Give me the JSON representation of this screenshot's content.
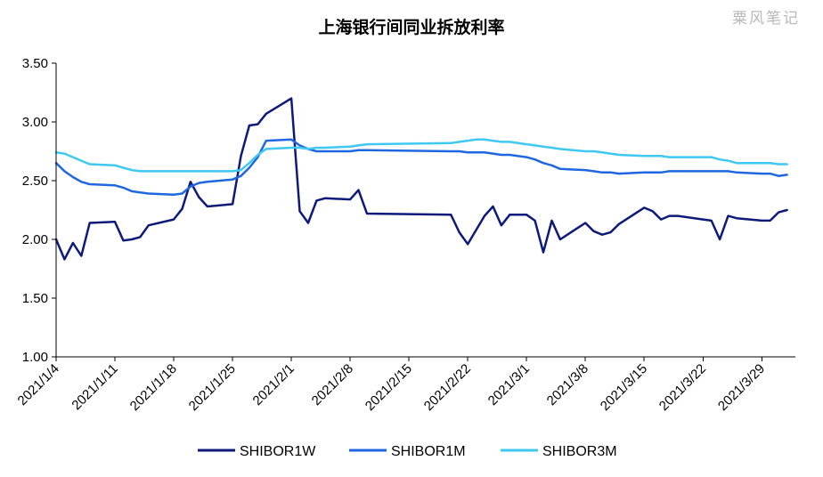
{
  "watermark": "粟风笔记",
  "chart_data": {
    "type": "line",
    "title": "上海银行间同业拆放利率",
    "xlabel": "",
    "ylabel": "",
    "ylim": [
      1.0,
      3.5
    ],
    "yticks": [
      "1.00",
      "1.50",
      "2.00",
      "2.50",
      "3.00",
      "3.50"
    ],
    "xlim": [
      "2021-01-04",
      "2021-04-02"
    ],
    "xtick_dates": [
      "2021-01-04",
      "2021-01-11",
      "2021-01-18",
      "2021-01-25",
      "2021-02-01",
      "2021-02-08",
      "2021-02-15",
      "2021-02-22",
      "2021-03-01",
      "2021-03-08",
      "2021-03-15",
      "2021-03-22",
      "2021-03-29"
    ],
    "xtick_labels": [
      "2021/1/4",
      "2021/1/11",
      "2021/1/18",
      "2021/1/25",
      "2021/2/1",
      "2021/2/8",
      "2021/2/15",
      "2021/2/22",
      "2021/3/1",
      "2021/3/8",
      "2021/3/15",
      "2021/3/22",
      "2021/3/29"
    ],
    "grid": false,
    "legend_position": "bottom",
    "series": [
      {
        "name": "SHIBOR1W",
        "color": "#0d1a7a",
        "points": [
          [
            "2021-01-04",
            2.0
          ],
          [
            "2021-01-05",
            1.83
          ],
          [
            "2021-01-06",
            1.97
          ],
          [
            "2021-01-07",
            1.86
          ],
          [
            "2021-01-08",
            2.14
          ],
          [
            "2021-01-11",
            2.15
          ],
          [
            "2021-01-12",
            1.99
          ],
          [
            "2021-01-13",
            2.0
          ],
          [
            "2021-01-14",
            2.02
          ],
          [
            "2021-01-15",
            2.12
          ],
          [
            "2021-01-18",
            2.17
          ],
          [
            "2021-01-19",
            2.26
          ],
          [
            "2021-01-20",
            2.49
          ],
          [
            "2021-01-21",
            2.36
          ],
          [
            "2021-01-22",
            2.28
          ],
          [
            "2021-01-25",
            2.3
          ],
          [
            "2021-01-26",
            2.71
          ],
          [
            "2021-01-27",
            2.97
          ],
          [
            "2021-01-28",
            2.98
          ],
          [
            "2021-01-29",
            3.07
          ],
          [
            "2021-02-01",
            3.2
          ],
          [
            "2021-02-02",
            2.24
          ],
          [
            "2021-02-03",
            2.14
          ],
          [
            "2021-02-04",
            2.33
          ],
          [
            "2021-02-05",
            2.35
          ],
          [
            "2021-02-08",
            2.34
          ],
          [
            "2021-02-09",
            2.42
          ],
          [
            "2021-02-10",
            2.22
          ],
          [
            "2021-02-20",
            2.21
          ],
          [
            "2021-02-21",
            2.06
          ],
          [
            "2021-02-22",
            1.96
          ],
          [
            "2021-02-23",
            2.08
          ],
          [
            "2021-02-24",
            2.2
          ],
          [
            "2021-02-25",
            2.28
          ],
          [
            "2021-02-26",
            2.12
          ],
          [
            "2021-02-27",
            2.21
          ],
          [
            "2021-03-01",
            2.21
          ],
          [
            "2021-03-02",
            2.16
          ],
          [
            "2021-03-03",
            1.89
          ],
          [
            "2021-03-04",
            2.16
          ],
          [
            "2021-03-05",
            2.0
          ],
          [
            "2021-03-08",
            2.14
          ],
          [
            "2021-03-09",
            2.07
          ],
          [
            "2021-03-10",
            2.04
          ],
          [
            "2021-03-11",
            2.06
          ],
          [
            "2021-03-12",
            2.13
          ],
          [
            "2021-03-15",
            2.27
          ],
          [
            "2021-03-16",
            2.24
          ],
          [
            "2021-03-17",
            2.17
          ],
          [
            "2021-03-18",
            2.2
          ],
          [
            "2021-03-19",
            2.2
          ],
          [
            "2021-03-22",
            2.17
          ],
          [
            "2021-03-23",
            2.16
          ],
          [
            "2021-03-24",
            2.0
          ],
          [
            "2021-03-25",
            2.2
          ],
          [
            "2021-03-26",
            2.18
          ],
          [
            "2021-03-29",
            2.16
          ],
          [
            "2021-03-30",
            2.16
          ],
          [
            "2021-03-31",
            2.23
          ],
          [
            "2021-04-01",
            2.25
          ]
        ]
      },
      {
        "name": "SHIBOR1M",
        "color": "#1f67e0",
        "points": [
          [
            "2021-01-04",
            2.65
          ],
          [
            "2021-01-05",
            2.58
          ],
          [
            "2021-01-06",
            2.53
          ],
          [
            "2021-01-07",
            2.49
          ],
          [
            "2021-01-08",
            2.47
          ],
          [
            "2021-01-11",
            2.46
          ],
          [
            "2021-01-12",
            2.44
          ],
          [
            "2021-01-13",
            2.41
          ],
          [
            "2021-01-14",
            2.4
          ],
          [
            "2021-01-15",
            2.39
          ],
          [
            "2021-01-18",
            2.38
          ],
          [
            "2021-01-19",
            2.39
          ],
          [
            "2021-01-20",
            2.45
          ],
          [
            "2021-01-21",
            2.48
          ],
          [
            "2021-01-22",
            2.49
          ],
          [
            "2021-01-25",
            2.51
          ],
          [
            "2021-01-26",
            2.54
          ],
          [
            "2021-01-27",
            2.61
          ],
          [
            "2021-01-28",
            2.7
          ],
          [
            "2021-01-29",
            2.84
          ],
          [
            "2021-02-01",
            2.85
          ],
          [
            "2021-02-02",
            2.8
          ],
          [
            "2021-02-03",
            2.77
          ],
          [
            "2021-02-04",
            2.75
          ],
          [
            "2021-02-05",
            2.75
          ],
          [
            "2021-02-08",
            2.75
          ],
          [
            "2021-02-09",
            2.76
          ],
          [
            "2021-02-10",
            2.76
          ],
          [
            "2021-02-20",
            2.75
          ],
          [
            "2021-02-21",
            2.75
          ],
          [
            "2021-02-22",
            2.74
          ],
          [
            "2021-02-23",
            2.74
          ],
          [
            "2021-02-24",
            2.74
          ],
          [
            "2021-02-25",
            2.73
          ],
          [
            "2021-02-26",
            2.72
          ],
          [
            "2021-02-27",
            2.72
          ],
          [
            "2021-03-01",
            2.7
          ],
          [
            "2021-03-02",
            2.68
          ],
          [
            "2021-03-03",
            2.65
          ],
          [
            "2021-03-04",
            2.63
          ],
          [
            "2021-03-05",
            2.6
          ],
          [
            "2021-03-08",
            2.59
          ],
          [
            "2021-03-09",
            2.58
          ],
          [
            "2021-03-10",
            2.57
          ],
          [
            "2021-03-11",
            2.57
          ],
          [
            "2021-03-12",
            2.56
          ],
          [
            "2021-03-15",
            2.57
          ],
          [
            "2021-03-16",
            2.57
          ],
          [
            "2021-03-17",
            2.57
          ],
          [
            "2021-03-18",
            2.58
          ],
          [
            "2021-03-19",
            2.58
          ],
          [
            "2021-03-22",
            2.58
          ],
          [
            "2021-03-23",
            2.58
          ],
          [
            "2021-03-24",
            2.58
          ],
          [
            "2021-03-25",
            2.58
          ],
          [
            "2021-03-26",
            2.57
          ],
          [
            "2021-03-29",
            2.56
          ],
          [
            "2021-03-30",
            2.56
          ],
          [
            "2021-03-31",
            2.54
          ],
          [
            "2021-04-01",
            2.55
          ]
        ]
      },
      {
        "name": "SHIBOR3M",
        "color": "#3ec8f2",
        "points": [
          [
            "2021-01-04",
            2.74
          ],
          [
            "2021-01-05",
            2.73
          ],
          [
            "2021-01-06",
            2.7
          ],
          [
            "2021-01-07",
            2.67
          ],
          [
            "2021-01-08",
            2.64
          ],
          [
            "2021-01-11",
            2.63
          ],
          [
            "2021-01-12",
            2.61
          ],
          [
            "2021-01-13",
            2.59
          ],
          [
            "2021-01-14",
            2.58
          ],
          [
            "2021-01-15",
            2.58
          ],
          [
            "2021-01-18",
            2.58
          ],
          [
            "2021-01-19",
            2.58
          ],
          [
            "2021-01-20",
            2.58
          ],
          [
            "2021-01-21",
            2.58
          ],
          [
            "2021-01-22",
            2.58
          ],
          [
            "2021-01-25",
            2.58
          ],
          [
            "2021-01-26",
            2.59
          ],
          [
            "2021-01-27",
            2.65
          ],
          [
            "2021-01-28",
            2.72
          ],
          [
            "2021-01-29",
            2.77
          ],
          [
            "2021-02-01",
            2.78
          ],
          [
            "2021-02-02",
            2.78
          ],
          [
            "2021-02-03",
            2.77
          ],
          [
            "2021-02-04",
            2.78
          ],
          [
            "2021-02-05",
            2.78
          ],
          [
            "2021-02-08",
            2.79
          ],
          [
            "2021-02-09",
            2.8
          ],
          [
            "2021-02-10",
            2.81
          ],
          [
            "2021-02-20",
            2.82
          ],
          [
            "2021-02-21",
            2.83
          ],
          [
            "2021-02-22",
            2.84
          ],
          [
            "2021-02-23",
            2.85
          ],
          [
            "2021-02-24",
            2.85
          ],
          [
            "2021-02-25",
            2.84
          ],
          [
            "2021-02-26",
            2.83
          ],
          [
            "2021-02-27",
            2.83
          ],
          [
            "2021-03-01",
            2.81
          ],
          [
            "2021-03-02",
            2.8
          ],
          [
            "2021-03-03",
            2.79
          ],
          [
            "2021-03-04",
            2.78
          ],
          [
            "2021-03-05",
            2.77
          ],
          [
            "2021-03-08",
            2.75
          ],
          [
            "2021-03-09",
            2.75
          ],
          [
            "2021-03-10",
            2.74
          ],
          [
            "2021-03-11",
            2.73
          ],
          [
            "2021-03-12",
            2.72
          ],
          [
            "2021-03-15",
            2.71
          ],
          [
            "2021-03-16",
            2.71
          ],
          [
            "2021-03-17",
            2.71
          ],
          [
            "2021-03-18",
            2.7
          ],
          [
            "2021-03-19",
            2.7
          ],
          [
            "2021-03-22",
            2.7
          ],
          [
            "2021-03-23",
            2.7
          ],
          [
            "2021-03-24",
            2.68
          ],
          [
            "2021-03-25",
            2.67
          ],
          [
            "2021-03-26",
            2.65
          ],
          [
            "2021-03-29",
            2.65
          ],
          [
            "2021-03-30",
            2.65
          ],
          [
            "2021-03-31",
            2.64
          ],
          [
            "2021-04-01",
            2.64
          ]
        ]
      }
    ]
  }
}
